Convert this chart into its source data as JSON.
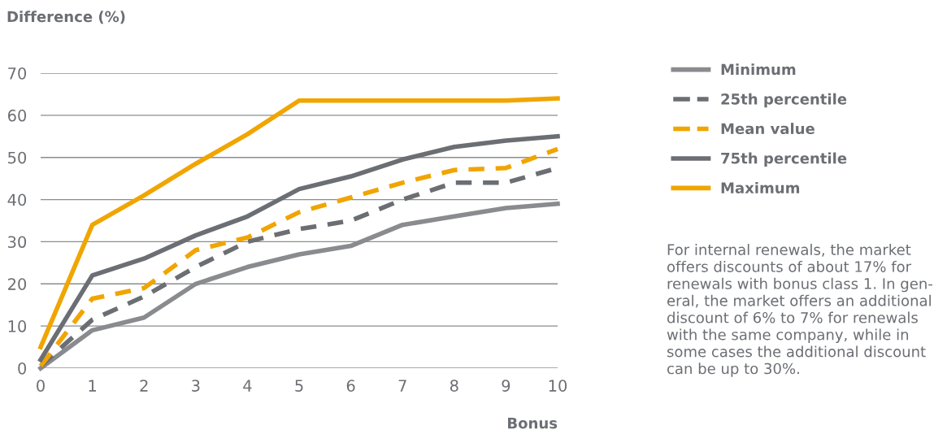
{
  "chart_data": {
    "type": "line",
    "ylabel": "Difference (%)",
    "xlabel": "Bonus",
    "x": [
      0,
      1,
      2,
      3,
      4,
      5,
      6,
      7,
      8,
      9,
      10
    ],
    "xlim": [
      0,
      10
    ],
    "xticks": [
      0,
      1,
      2,
      3,
      4,
      5,
      6,
      7,
      8,
      9,
      10
    ],
    "ylim": [
      0,
      70
    ],
    "yticks": [
      0,
      10,
      20,
      30,
      40,
      50,
      60,
      70
    ],
    "grid": "y",
    "legend": "right",
    "series": [
      {
        "name": "Minimum",
        "color": "#898b8e",
        "line_style": "solid",
        "values": [
          0,
          9,
          12,
          20,
          24,
          27,
          29,
          34,
          36,
          38,
          39
        ]
      },
      {
        "name": "25th percentile",
        "color": "#6b6e73",
        "line_style": "dashed",
        "values": [
          0.5,
          11.5,
          17,
          24,
          30,
          33,
          35,
          40,
          44,
          44,
          47.5
        ]
      },
      {
        "name": "Mean value",
        "color": "#f0a500",
        "line_style": "dashed",
        "values": [
          0.5,
          16.5,
          19,
          28,
          31,
          37,
          40.5,
          44,
          47,
          47.5,
          52
        ]
      },
      {
        "name": "75th percentile",
        "color": "#6b6e73",
        "line_style": "solid",
        "values": [
          2,
          22,
          26,
          31.5,
          36,
          42.5,
          45.5,
          49.5,
          52.5,
          54,
          55
        ]
      },
      {
        "name": "Maximum",
        "color": "#f0a500",
        "line_style": "solid",
        "values": [
          5,
          34,
          41,
          48.5,
          55.5,
          63.5,
          63.5,
          63.5,
          63.5,
          63.5,
          64
        ]
      }
    ],
    "annotations": [
      "For internal renewals, the market\noffers discounts of about 17% for\nrenewals with bonus class 1. In gen-\neral, the market offers an additional\ndiscount of 6% to 7% for renewals\nwith the same company, while in\nsome cases the additional discount\ncan be up to 30%."
    ]
  }
}
